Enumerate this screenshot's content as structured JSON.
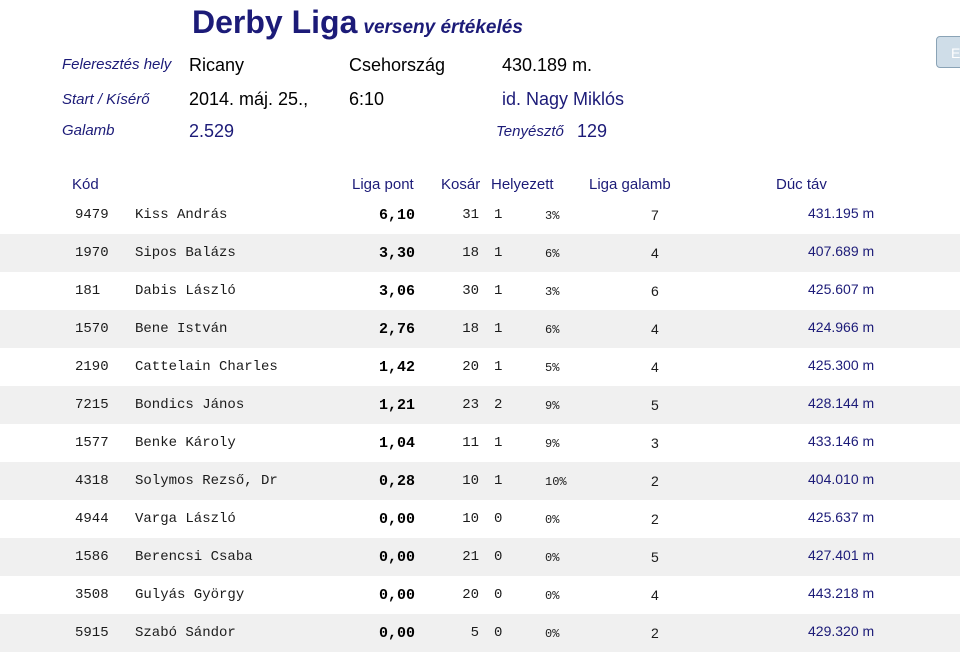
{
  "title": {
    "main": "Derby Liga",
    "sub": "verseny értékelés"
  },
  "release": {
    "label": "Feleresztés hely",
    "place": "Ricany",
    "country": "Csehország",
    "distance": "430.189 m."
  },
  "start": {
    "label": "Start  / Kísérő",
    "date": "2014. máj. 25.,",
    "time": "6:10",
    "escort": "id. Nagy Miklós"
  },
  "pigeon": {
    "label": "Galamb",
    "count": "2.529",
    "breeder_label": "Tenyésztő",
    "breeder_count": "129"
  },
  "side_button": {
    "label": "E"
  },
  "table": {
    "headers": {
      "code": "Kód",
      "points": "Liga pont",
      "basket": "Kosár",
      "placed": "Helyezett",
      "liga_pigeon": "Liga galamb",
      "distance": "Dúc táv"
    },
    "rows": [
      {
        "code": "9479",
        "name": "Kiss András",
        "points": "6,10",
        "basket": "31",
        "placed": "1",
        "pct": "3%",
        "liga": "7",
        "dist": "431.195 m"
      },
      {
        "code": "1970",
        "name": "Sipos Balázs",
        "points": "3,30",
        "basket": "18",
        "placed": "1",
        "pct": "6%",
        "liga": "4",
        "dist": "407.689 m"
      },
      {
        "code": "181",
        "name": "Dabis László",
        "points": "3,06",
        "basket": "30",
        "placed": "1",
        "pct": "3%",
        "liga": "6",
        "dist": "425.607 m"
      },
      {
        "code": "1570",
        "name": "Bene István",
        "points": "2,76",
        "basket": "18",
        "placed": "1",
        "pct": "6%",
        "liga": "4",
        "dist": "424.966 m"
      },
      {
        "code": "2190",
        "name": "Cattelain Charles",
        "points": "1,42",
        "basket": "20",
        "placed": "1",
        "pct": "5%",
        "liga": "4",
        "dist": "425.300 m"
      },
      {
        "code": "7215",
        "name": "Bondics János",
        "points": "1,21",
        "basket": "23",
        "placed": "2",
        "pct": "9%",
        "liga": "5",
        "dist": "428.144 m"
      },
      {
        "code": "1577",
        "name": "Benke Károly",
        "points": "1,04",
        "basket": "11",
        "placed": "1",
        "pct": "9%",
        "liga": "3",
        "dist": "433.146 m"
      },
      {
        "code": "4318",
        "name": "Solymos Rezső, Dr",
        "points": "0,28",
        "basket": "10",
        "placed": "1",
        "pct": "10%",
        "liga": "2",
        "dist": "404.010 m"
      },
      {
        "code": "4944",
        "name": "Varga László",
        "points": "0,00",
        "basket": "10",
        "placed": "0",
        "pct": "0%",
        "liga": "2",
        "dist": "425.637 m"
      },
      {
        "code": "1586",
        "name": "Berencsi Csaba",
        "points": "0,00",
        "basket": "21",
        "placed": "0",
        "pct": "0%",
        "liga": "5",
        "dist": "427.401 m"
      },
      {
        "code": "3508",
        "name": "Gulyás György",
        "points": "0,00",
        "basket": "20",
        "placed": "0",
        "pct": "0%",
        "liga": "4",
        "dist": "443.218 m"
      },
      {
        "code": "5915",
        "name": "Szabó Sándor",
        "points": "0,00",
        "basket": "5",
        "placed": "0",
        "pct": "0%",
        "liga": "2",
        "dist": "429.320 m"
      }
    ]
  }
}
